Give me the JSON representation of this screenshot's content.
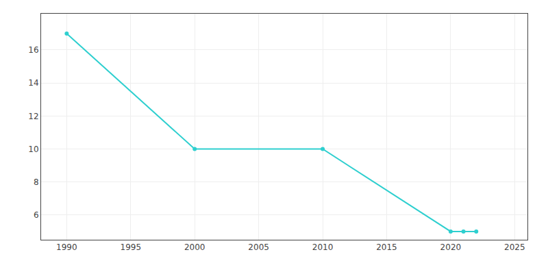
{
  "chart_data": {
    "type": "line",
    "x": [
      1990,
      2000,
      2010,
      2020,
      2021,
      2022
    ],
    "values": [
      17,
      10,
      10,
      5,
      5,
      5
    ],
    "color": "#2ecfcf",
    "marker": "circle",
    "xlim": [
      1988,
      2026
    ],
    "ylim": [
      4.5,
      18.2
    ],
    "xticks": [
      1990,
      1995,
      2000,
      2005,
      2010,
      2015,
      2020,
      2025
    ],
    "yticks": [
      6,
      8,
      10,
      12,
      14,
      16
    ],
    "grid": true
  }
}
